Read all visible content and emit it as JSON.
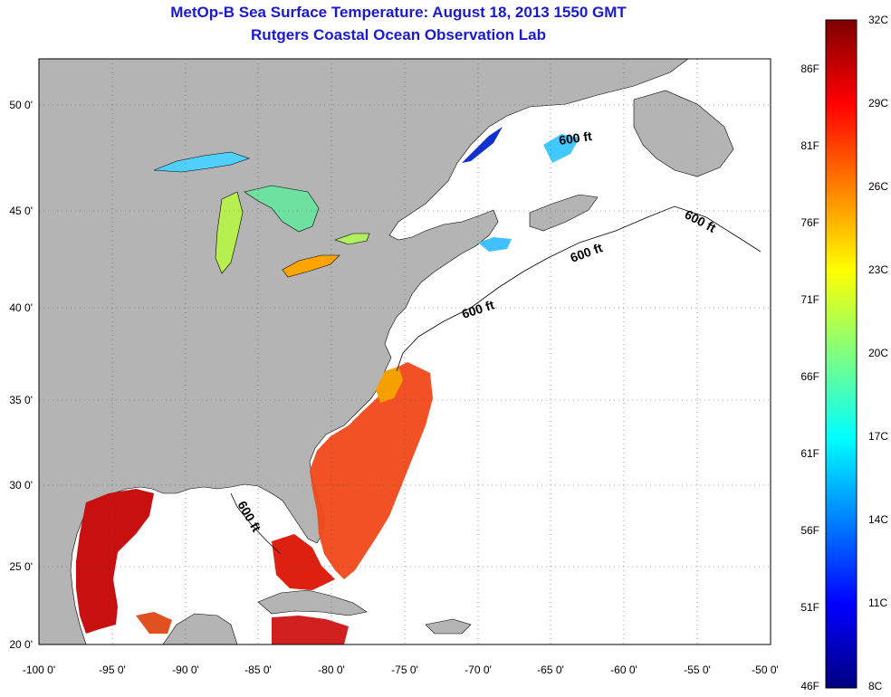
{
  "title": "MetOp-B Sea Surface Temperature:  August 18, 2013 1550 GMT",
  "subtitle": "Rutgers Coastal Ocean Observation Lab",
  "lat_ticks": [
    "50 0'",
    "45 0'",
    "40 0'",
    "35 0'",
    "30 0'",
    "25 0'",
    "20 0'"
  ],
  "lon_ticks": [
    "-100 0'",
    "-95 0'",
    "-90 0'",
    "-85 0'",
    "-80 0'",
    "-75 0'",
    "-70 0'",
    "-65 0'",
    "-60 0'",
    "-55 0'",
    "-50 0'"
  ],
  "contour_label": "600 ft",
  "colorbar": {
    "celsius_labels": [
      "32C",
      "29C",
      "26C",
      "23C",
      "20C",
      "17C",
      "14C",
      "11C",
      "8C"
    ],
    "fahrenheit_labels": [
      "86F",
      "81F",
      "76F",
      "71F",
      "66F",
      "61F",
      "56F",
      "51F",
      "46F"
    ]
  },
  "colors": {
    "title": "#1a1ad0",
    "land": "#b4b4b4",
    "ocean_nodata": "#ffffff",
    "grid": "#555555"
  }
}
